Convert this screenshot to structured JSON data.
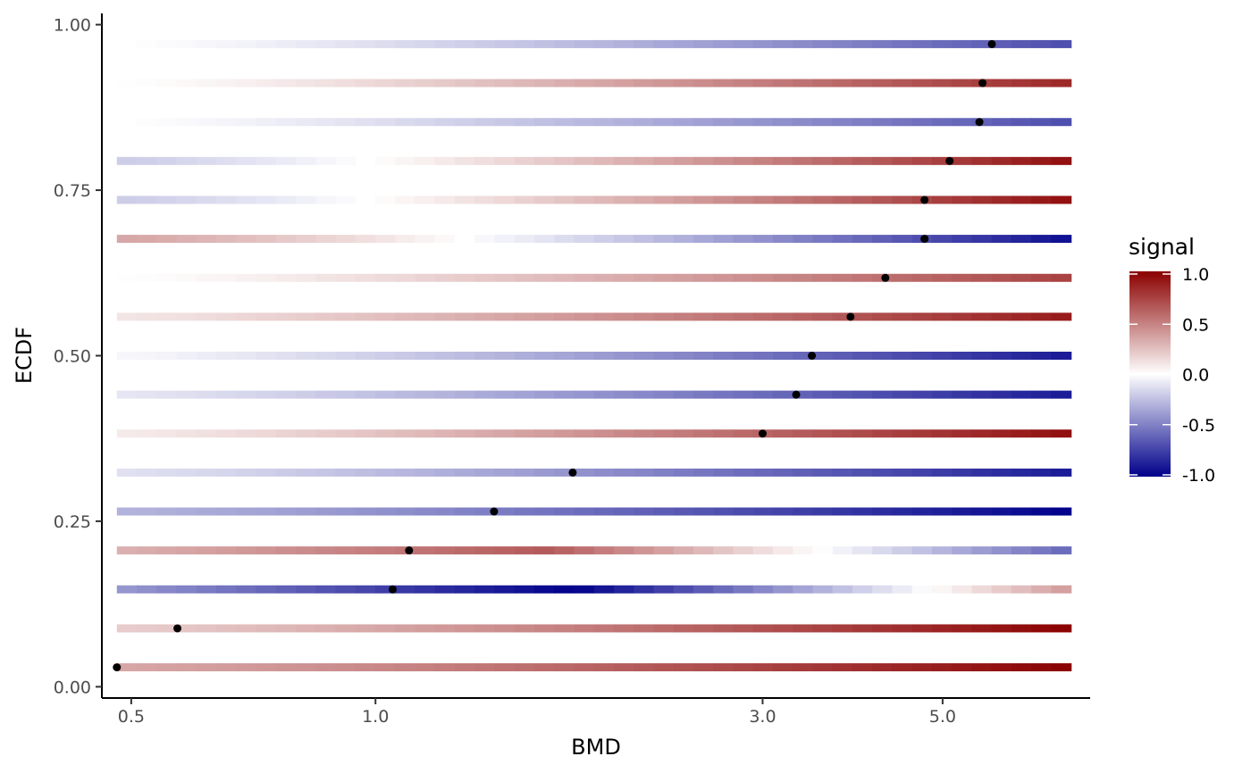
{
  "chart_data": {
    "type": "scatter",
    "title": "",
    "xlabel": "BMD",
    "ylabel": "ECDF",
    "x_scale": "log10",
    "xlim": [
      0.46,
      7.6
    ],
    "ylim": [
      -0.017,
      1.017
    ],
    "x_ticks": [
      0.5,
      1.0,
      3.0,
      5.0
    ],
    "x_tick_labels": [
      "0.5",
      "1.0",
      "3.0",
      "5.0"
    ],
    "y_ticks": [
      0.0,
      0.25,
      0.5,
      0.75,
      1.0
    ],
    "y_tick_labels": [
      "0.00",
      "0.25",
      "0.50",
      "0.75",
      "1.00"
    ],
    "grid": false,
    "legend": {
      "title": "signal",
      "position": "right",
      "range": [
        -1.0,
        1.0
      ],
      "ticks": [
        1.0,
        0.5,
        0.0,
        -0.5,
        -1.0
      ],
      "tick_labels": [
        "1.0",
        "0.5",
        "0.0",
        "-0.5",
        "-1.0"
      ],
      "colors": {
        "high": "#8B0000",
        "mid": "#ffffff",
        "low": "#00008B"
      }
    },
    "x_range": [
      0.48,
      7.2
    ],
    "points": [
      {
        "bmd": 0.48,
        "ecdf": 0.0294
      },
      {
        "bmd": 0.57,
        "ecdf": 0.0882
      },
      {
        "bmd": 1.05,
        "ecdf": 0.1471
      },
      {
        "bmd": 1.1,
        "ecdf": 0.2059
      },
      {
        "bmd": 1.4,
        "ecdf": 0.2647
      },
      {
        "bmd": 1.75,
        "ecdf": 0.3235
      },
      {
        "bmd": 3.0,
        "ecdf": 0.3824
      },
      {
        "bmd": 3.3,
        "ecdf": 0.4412
      },
      {
        "bmd": 3.45,
        "ecdf": 0.5
      },
      {
        "bmd": 3.85,
        "ecdf": 0.5588
      },
      {
        "bmd": 4.25,
        "ecdf": 0.6176
      },
      {
        "bmd": 4.75,
        "ecdf": 0.6765
      },
      {
        "bmd": 4.75,
        "ecdf": 0.7353
      },
      {
        "bmd": 5.1,
        "ecdf": 0.7941
      },
      {
        "bmd": 5.55,
        "ecdf": 0.8529
      },
      {
        "bmd": 5.6,
        "ecdf": 0.9118
      },
      {
        "bmd": 5.75,
        "ecdf": 0.9706
      }
    ],
    "series": [
      {
        "ecdf": 0.0294,
        "start": 0.35,
        "end": 1.0
      },
      {
        "ecdf": 0.0882,
        "start": 0.2,
        "end": 1.0
      },
      {
        "ecdf": 0.1471,
        "start": -0.4,
        "end": 0.4,
        "mid": -1.0,
        "mid_at": 0.48
      },
      {
        "ecdf": 0.2059,
        "start": 0.3,
        "end": -0.6,
        "mid": 0.65,
        "mid_at": 0.45
      },
      {
        "ecdf": 0.2647,
        "start": -0.3,
        "end": -1.0
      },
      {
        "ecdf": 0.3235,
        "start": -0.12,
        "end": -0.9
      },
      {
        "ecdf": 0.3824,
        "start": 0.08,
        "end": 0.95
      },
      {
        "ecdf": 0.4412,
        "start": -0.1,
        "end": -0.9
      },
      {
        "ecdf": 0.5,
        "start": -0.03,
        "end": -0.9
      },
      {
        "ecdf": 0.5588,
        "start": 0.1,
        "end": 0.9
      },
      {
        "ecdf": 0.6176,
        "start": 0.0,
        "end": 0.75
      },
      {
        "ecdf": 0.6765,
        "start": 0.35,
        "end": -0.95
      },
      {
        "ecdf": 0.7353,
        "start": -0.2,
        "end": 0.95
      },
      {
        "ecdf": 0.7941,
        "start": -0.2,
        "end": 0.95
      },
      {
        "ecdf": 0.8529,
        "start": 0.0,
        "end": -0.7
      },
      {
        "ecdf": 0.9118,
        "start": 0.0,
        "end": 0.85
      },
      {
        "ecdf": 0.9706,
        "start": 0.0,
        "end": -0.7
      }
    ]
  }
}
